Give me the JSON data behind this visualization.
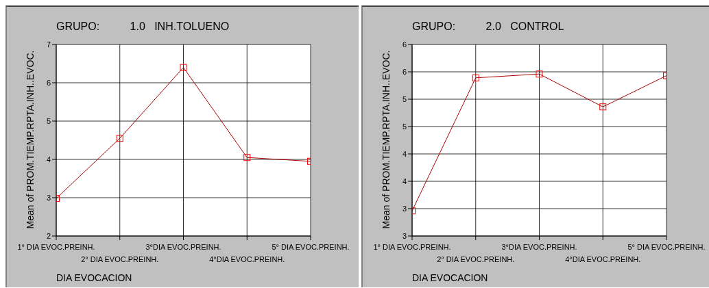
{
  "chart_data": [
    {
      "type": "line",
      "title": "GRUPO:          1.0   INH.TOLUENO",
      "xlabel": "DIA EVOCACION",
      "ylabel": "Mean of PROM.TIEMP.RPTA.INH..EVOC.",
      "categories": [
        "1° DIA EVOC.PREINH.",
        "2° DIA EVOC.PREINH.",
        "3°DIA EVOC.PREINH.",
        "4°DIA EVOC.PREINH.",
        "5° DIA EVOC.PREINH."
      ],
      "series": [
        {
          "color": "#aa0000",
          "values": [
            2.98,
            4.55,
            6.4,
            4.05,
            3.95
          ]
        }
      ],
      "ylim": [
        2,
        7
      ],
      "yticks": [
        2,
        3,
        4,
        5,
        6,
        7
      ],
      "grid": true,
      "marker": "square"
    },
    {
      "type": "line",
      "title": "GRUPO:          2.0   CONTROL",
      "xlabel": "DIA EVOCACION",
      "ylabel": "Mean of PROM.TIEMP.RPTA.INH..EVOC.",
      "categories": [
        "1° DIA EVOC.PREINH.",
        "2° DIA EVOC.PREINH.",
        "3°DIA EVOC.PREINH.",
        "4°DIA EVOC.PREINH.",
        "5° DIA EVOC.PREINH."
      ],
      "series": [
        {
          "color": "#aa0000",
          "values": [
            2.96,
            5.39,
            5.46,
            4.86,
            5.43
          ]
        }
      ],
      "ylim": [
        2.5,
        6
      ],
      "yticks": [
        {
          "value": 2.5,
          "label": "3"
        },
        {
          "value": 3,
          "label": "3"
        },
        {
          "value": 3.5,
          "label": "4"
        },
        {
          "value": 4,
          "label": "4"
        },
        {
          "value": 4.5,
          "label": "5"
        },
        {
          "value": 5,
          "label": "5"
        },
        {
          "value": 5.5,
          "label": "6"
        },
        {
          "value": 6,
          "label": "6"
        }
      ],
      "grid": true,
      "marker": "square"
    }
  ]
}
